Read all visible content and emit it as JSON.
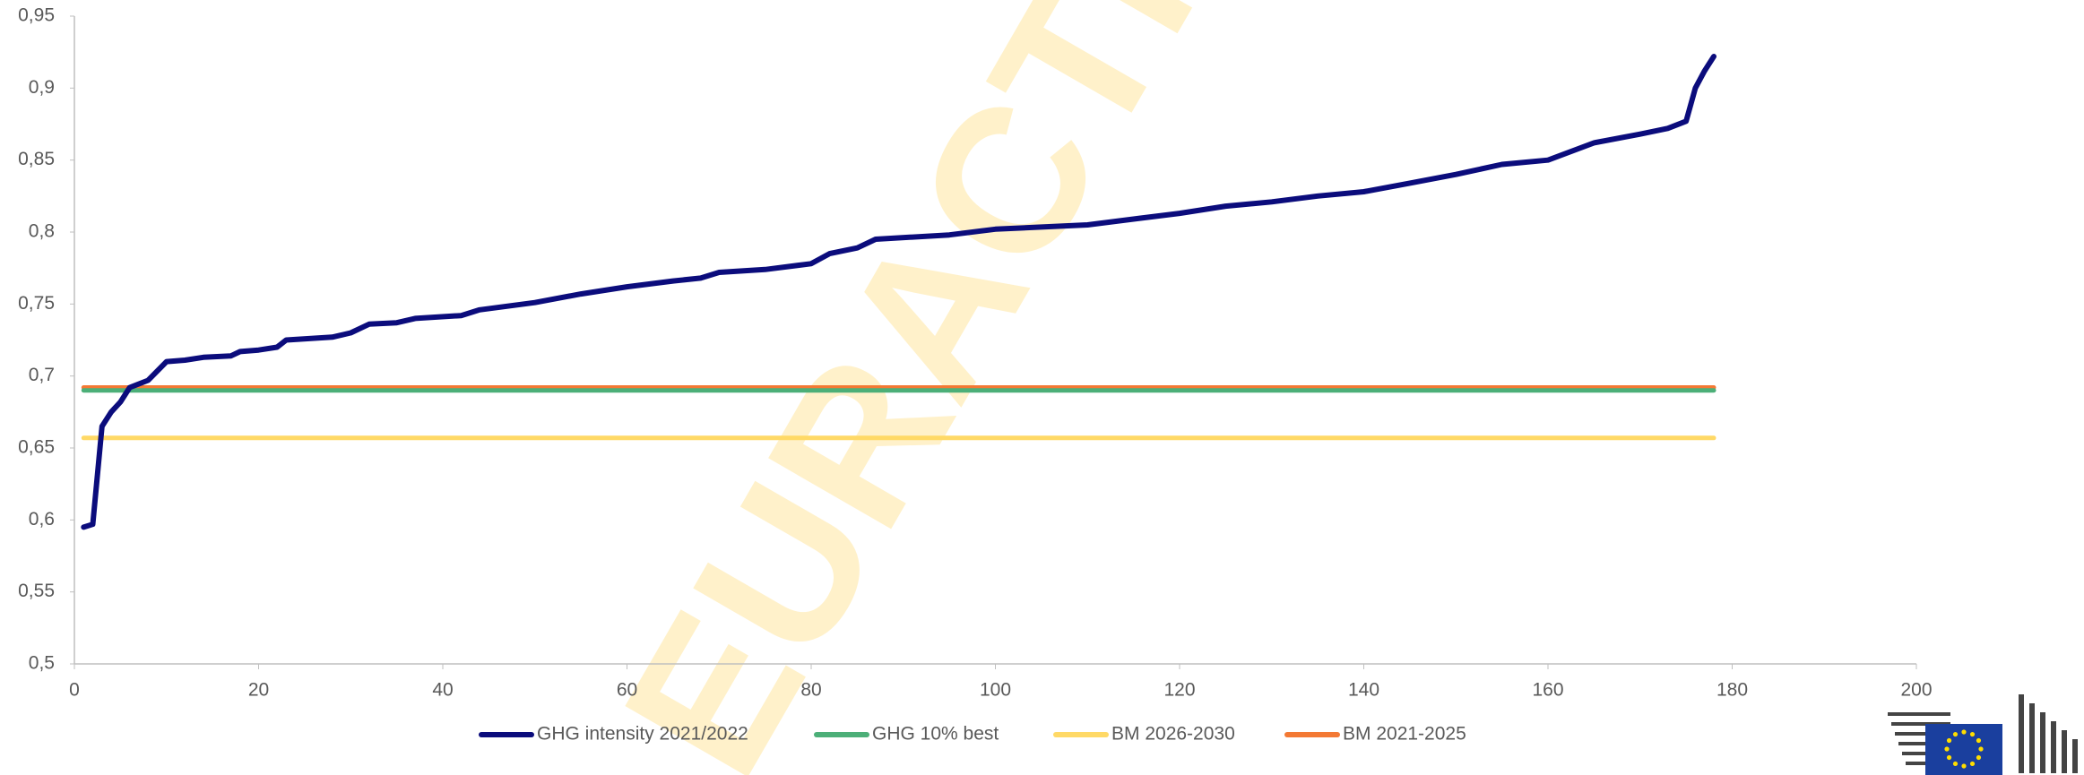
{
  "chart_data": {
    "type": "line",
    "watermark": "EURACTIV",
    "xlim": [
      0,
      200
    ],
    "xticks": [
      0,
      20,
      40,
      60,
      80,
      100,
      120,
      140,
      160,
      180,
      200
    ],
    "ylim": [
      0.5,
      0.95
    ],
    "yticks": [
      {
        "value": 0.5,
        "label": "0,5"
      },
      {
        "value": 0.55,
        "label": "0,55"
      },
      {
        "value": 0.6,
        "label": "0,6"
      },
      {
        "value": 0.65,
        "label": "0,65"
      },
      {
        "value": 0.7,
        "label": "0,7"
      },
      {
        "value": 0.75,
        "label": "0,75"
      },
      {
        "value": 0.8,
        "label": "0,8"
      },
      {
        "value": 0.85,
        "label": "0,85"
      },
      {
        "value": 0.9,
        "label": "0,9"
      },
      {
        "value": 0.95,
        "label": "0,95"
      }
    ],
    "grid": false,
    "legend": "bottom",
    "series": [
      {
        "name": "GHG intensity 2021/2022",
        "color": "#0b0c7c",
        "x": [
          1,
          2,
          3,
          4,
          5,
          6,
          8,
          10,
          12,
          14,
          17,
          18,
          20,
          22,
          23,
          28,
          30,
          32,
          35,
          37,
          42,
          44,
          50,
          55,
          60,
          65,
          68,
          70,
          75,
          80,
          82,
          85,
          87,
          95,
          100,
          110,
          115,
          120,
          125,
          130,
          135,
          140,
          145,
          150,
          155,
          160,
          165,
          170,
          173,
          175,
          176,
          177,
          178
        ],
        "values": [
          0.595,
          0.597,
          0.665,
          0.675,
          0.682,
          0.692,
          0.697,
          0.71,
          0.711,
          0.713,
          0.714,
          0.717,
          0.718,
          0.72,
          0.725,
          0.727,
          0.73,
          0.736,
          0.737,
          0.74,
          0.742,
          0.746,
          0.751,
          0.757,
          0.762,
          0.766,
          0.768,
          0.772,
          0.774,
          0.778,
          0.785,
          0.789,
          0.795,
          0.798,
          0.802,
          0.805,
          0.809,
          0.813,
          0.818,
          0.821,
          0.825,
          0.828,
          0.834,
          0.84,
          0.847,
          0.85,
          0.862,
          0.868,
          0.872,
          0.877,
          0.9,
          0.912,
          0.922
        ]
      },
      {
        "name": "GHG 10% best",
        "color": "#4caf78",
        "x": [
          1,
          178
        ],
        "values": [
          0.69,
          0.69
        ]
      },
      {
        "name": "BM 2026-2030",
        "color": "#ffd966",
        "x": [
          1,
          178
        ],
        "values": [
          0.657,
          0.657
        ]
      },
      {
        "name": "BM 2021-2025",
        "color": "#f37934",
        "x": [
          1,
          178
        ],
        "values": [
          0.692,
          0.692
        ]
      }
    ]
  }
}
